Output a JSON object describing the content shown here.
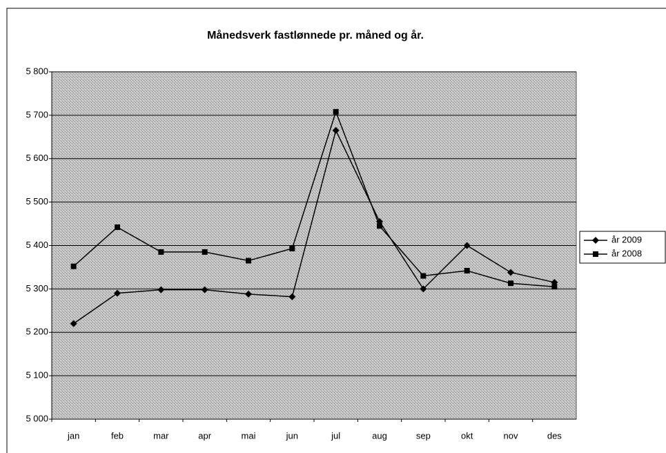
{
  "chart_data": {
    "type": "line",
    "title": "Månedsverk fastlønnede  pr. måned og år.",
    "categories": [
      "jan",
      "feb",
      "mar",
      "apr",
      "mai",
      "jun",
      "jul",
      "aug",
      "sep",
      "okt",
      "nov",
      "des"
    ],
    "series": [
      {
        "name": "år 2009",
        "color": "#000000",
        "marker": "diamond",
        "values": [
          5220,
          5290,
          5298,
          5298,
          5288,
          5282,
          5665,
          5455,
          5300,
          5400,
          5338,
          5315
        ]
      },
      {
        "name": "år 2008",
        "color": "#000000",
        "marker": "square",
        "values": [
          5352,
          5442,
          5385,
          5385,
          5365,
          5393,
          5708,
          5445,
          5330,
          5342,
          5313,
          5305
        ]
      }
    ],
    "ylim": [
      5000,
      5800
    ],
    "yticks": [
      {
        "value": 5000,
        "label": "5 000"
      },
      {
        "value": 5100,
        "label": "5 100"
      },
      {
        "value": 5200,
        "label": "5 200"
      },
      {
        "value": 5300,
        "label": "5 300"
      },
      {
        "value": 5400,
        "label": "5 400"
      },
      {
        "value": 5500,
        "label": "5 500"
      },
      {
        "value": 5600,
        "label": "5 600"
      },
      {
        "value": 5700,
        "label": "5 700"
      },
      {
        "value": 5800,
        "label": "5 800"
      }
    ],
    "grid": true,
    "legend": "right"
  }
}
